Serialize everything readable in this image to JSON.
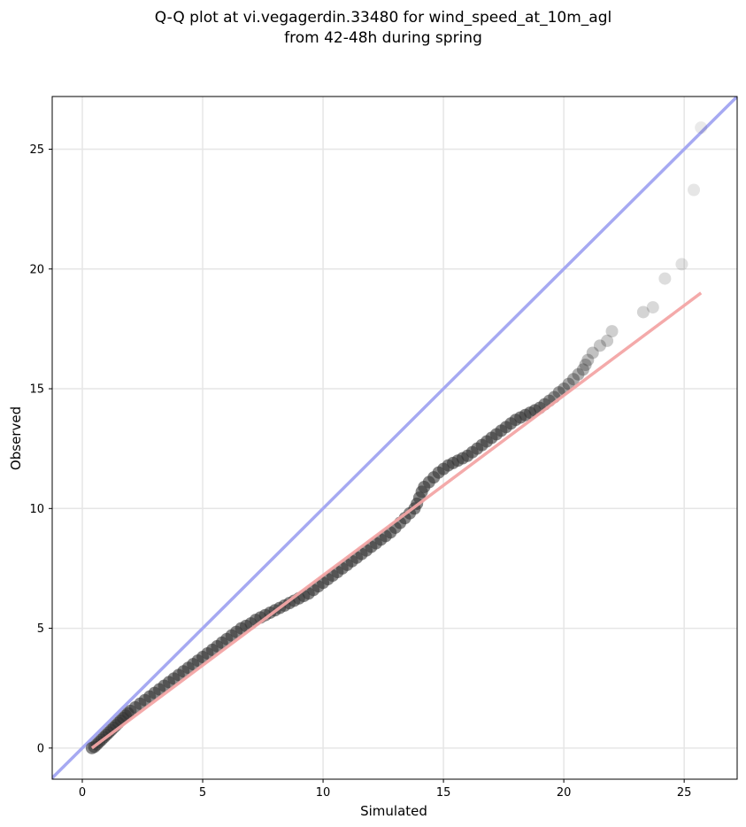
{
  "chart_data": {
    "type": "scatter",
    "title_line1": "Q-Q plot at vi.vegagerdin.33480 for wind_speed_at_10m_agl",
    "title_line2": "from 42-48h during spring",
    "xlabel": "Simulated",
    "ylabel": "Observed",
    "xlim": [
      -1.25,
      27.2
    ],
    "ylim": [
      -1.3,
      27.2
    ],
    "xticks": [
      0,
      5,
      10,
      15,
      20,
      25
    ],
    "yticks": [
      0,
      5,
      10,
      15,
      20,
      25
    ],
    "grid": true,
    "colors": {
      "points": "#333333",
      "identity_line": "#a6a9f2",
      "fit_line": "#f4a6a6"
    },
    "identity_line": {
      "name": "",
      "x": [
        -1.25,
        27.2
      ],
      "y": [
        -1.25,
        27.2
      ]
    },
    "fit_line": {
      "name": "",
      "x": [
        0.4,
        25.7
      ],
      "y": [
        0.0,
        19.0
      ]
    },
    "points": {
      "x": [
        0.4,
        0.5,
        0.6,
        0.7,
        0.8,
        0.9,
        1.0,
        1.1,
        1.2,
        1.3,
        1.4,
        1.5,
        1.6,
        1.7,
        1.8,
        1.9,
        2.0,
        2.2,
        2.4,
        2.6,
        2.8,
        3.0,
        3.2,
        3.4,
        3.6,
        3.8,
        4.0,
        4.2,
        4.4,
        4.6,
        4.8,
        5.0,
        5.2,
        5.4,
        5.6,
        5.8,
        6.0,
        6.2,
        6.4,
        6.6,
        6.8,
        7.0,
        7.2,
        7.4,
        7.6,
        7.8,
        8.0,
        8.2,
        8.4,
        8.6,
        8.8,
        9.0,
        9.2,
        9.4,
        9.6,
        9.8,
        10.0,
        10.2,
        10.4,
        10.6,
        10.8,
        11.0,
        11.2,
        11.4,
        11.6,
        11.8,
        12.0,
        12.2,
        12.4,
        12.6,
        12.8,
        13.0,
        13.2,
        13.4,
        13.6,
        13.8,
        13.9,
        14.0,
        14.1,
        14.2,
        14.4,
        14.6,
        14.8,
        15.0,
        15.2,
        15.4,
        15.6,
        15.8,
        16.0,
        16.2,
        16.4,
        16.6,
        16.8,
        17.0,
        17.2,
        17.4,
        17.6,
        17.8,
        18.0,
        18.2,
        18.4,
        18.6,
        18.8,
        19.0,
        19.2,
        19.4,
        19.6,
        19.8,
        20.0,
        20.2,
        20.4,
        20.6,
        20.8,
        20.9,
        21.0,
        21.2,
        21.5,
        21.8,
        22.0,
        23.3,
        23.7,
        24.2,
        24.9,
        25.4,
        25.7
      ],
      "y": [
        0.0,
        0.05,
        0.15,
        0.25,
        0.35,
        0.45,
        0.55,
        0.65,
        0.75,
        0.85,
        0.95,
        1.05,
        1.15,
        1.25,
        1.35,
        1.45,
        1.55,
        1.7,
        1.85,
        2.0,
        2.15,
        2.3,
        2.45,
        2.6,
        2.75,
        2.9,
        3.05,
        3.2,
        3.35,
        3.5,
        3.65,
        3.8,
        3.95,
        4.1,
        4.25,
        4.4,
        4.55,
        4.7,
        4.85,
        5.0,
        5.1,
        5.2,
        5.35,
        5.45,
        5.55,
        5.65,
        5.75,
        5.85,
        5.95,
        6.05,
        6.15,
        6.25,
        6.35,
        6.45,
        6.6,
        6.75,
        6.9,
        7.05,
        7.2,
        7.35,
        7.5,
        7.65,
        7.8,
        7.95,
        8.1,
        8.25,
        8.4,
        8.55,
        8.7,
        8.85,
        9.0,
        9.2,
        9.4,
        9.6,
        9.8,
        10.0,
        10.2,
        10.45,
        10.7,
        10.9,
        11.1,
        11.3,
        11.5,
        11.65,
        11.8,
        11.9,
        12.0,
        12.1,
        12.2,
        12.35,
        12.5,
        12.65,
        12.8,
        12.95,
        13.1,
        13.25,
        13.4,
        13.55,
        13.7,
        13.8,
        13.9,
        14.0,
        14.1,
        14.2,
        14.35,
        14.5,
        14.65,
        14.85,
        15.0,
        15.2,
        15.4,
        15.6,
        15.8,
        16.0,
        16.2,
        16.5,
        16.8,
        17.0,
        17.4,
        18.2,
        18.4,
        19.6,
        20.2,
        23.3,
        25.9
      ]
    }
  }
}
